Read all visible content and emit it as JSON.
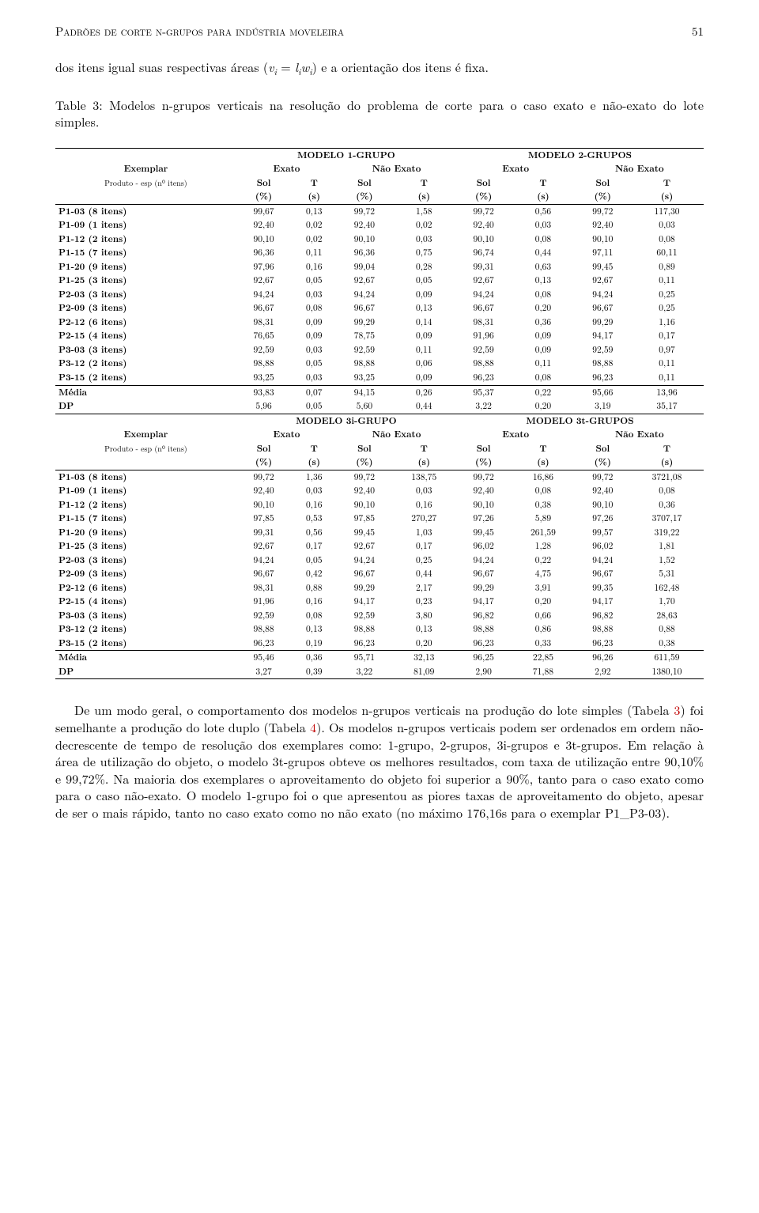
{
  "page": {
    "running_head": "Padrões de corte n-grupos para indústria moveleira",
    "page_number": "51"
  },
  "intro_para": "dos itens igual suas respectivas áreas (vᵢ = lᵢwᵢ) e a orientação dos itens é fixa.",
  "table_caption": "Table 3: Modelos n-grupos verticais na resolução do problema de corte para o caso exato e não-exato do lote simples.",
  "labels": {
    "exemplar": "Exemplar",
    "produto_esp": "Produto - esp (n⁰ itens)",
    "exato": "Exato",
    "nao_exato": "Não Exato",
    "sol": "Sol",
    "t": "T",
    "pct": "(%)",
    "sec": "(s)",
    "media": "Média",
    "dp": "DP"
  },
  "blocks": [
    {
      "left_title": "MODELO 1-GRUPO",
      "right_title": "MODELO 2-GRUPOS",
      "rows": [
        {
          "label": "P1-03 (8 itens)",
          "v": [
            "99,67",
            "0,13",
            "99,72",
            "1,58",
            "99,72",
            "0,56",
            "99,72",
            "117,30"
          ]
        },
        {
          "label": "P1-09 (1 itens)",
          "v": [
            "92,40",
            "0,02",
            "92,40",
            "0,02",
            "92,40",
            "0,03",
            "92,40",
            "0,03"
          ]
        },
        {
          "label": "P1-12 (2 itens)",
          "v": [
            "90,10",
            "0,02",
            "90,10",
            "0,03",
            "90,10",
            "0,08",
            "90,10",
            "0,08"
          ]
        },
        {
          "label": "P1-15 (7 itens)",
          "v": [
            "96,36",
            "0,11",
            "96,36",
            "0,75",
            "96,74",
            "0,44",
            "97,11",
            "60,11"
          ]
        },
        {
          "label": "P1-20 (9 itens)",
          "v": [
            "97,96",
            "0,16",
            "99,04",
            "0,28",
            "99,31",
            "0,63",
            "99,45",
            "0,89"
          ]
        },
        {
          "label": "P1-25 (3 itens)",
          "v": [
            "92,67",
            "0,05",
            "92,67",
            "0,05",
            "92,67",
            "0,13",
            "92,67",
            "0,11"
          ]
        },
        {
          "label": "P2-03 (3 itens)",
          "v": [
            "94,24",
            "0,03",
            "94,24",
            "0,09",
            "94,24",
            "0,08",
            "94,24",
            "0,25"
          ]
        },
        {
          "label": "P2-09 (3 itens)",
          "v": [
            "96,67",
            "0,08",
            "96,67",
            "0,13",
            "96,67",
            "0,20",
            "96,67",
            "0,25"
          ]
        },
        {
          "label": "P2-12 (6 itens)",
          "v": [
            "98,31",
            "0,09",
            "99,29",
            "0,14",
            "98,31",
            "0,36",
            "99,29",
            "1,16"
          ]
        },
        {
          "label": "P2-15 (4 itens)",
          "v": [
            "76,65",
            "0,09",
            "78,75",
            "0,09",
            "91,96",
            "0,09",
            "94,17",
            "0,17"
          ]
        },
        {
          "label": "P3-03 (3 itens)",
          "v": [
            "92,59",
            "0,03",
            "92,59",
            "0,11",
            "92,59",
            "0,09",
            "92,59",
            "0,97"
          ]
        },
        {
          "label": "P3-12 (2 itens)",
          "v": [
            "98,88",
            "0,05",
            "98,88",
            "0,06",
            "98,88",
            "0,11",
            "98,88",
            "0,11"
          ]
        },
        {
          "label": "P3-15 (2 itens)",
          "v": [
            "93,25",
            "0,03",
            "93,25",
            "0,09",
            "96,23",
            "0,08",
            "96,23",
            "0,11"
          ]
        }
      ],
      "media": [
        "93,83",
        "0,07",
        "94,15",
        "0,26",
        "95,37",
        "0,22",
        "95,66",
        "13,96"
      ],
      "dp": [
        "5,96",
        "0,05",
        "5,60",
        "0,44",
        "3,22",
        "0,20",
        "3,19",
        "35,17"
      ]
    },
    {
      "left_title": "MODELO 3i-GRUPO",
      "right_title": "MODELO 3t-GRUPOS",
      "rows": [
        {
          "label": "P1-03 (8 itens)",
          "v": [
            "99,72",
            "1,36",
            "99,72",
            "138,75",
            "99,72",
            "16,86",
            "99,72",
            "3721,08"
          ]
        },
        {
          "label": "P1-09 (1 itens)",
          "v": [
            "92,40",
            "0,03",
            "92,40",
            "0,03",
            "92,40",
            "0,08",
            "92,40",
            "0,08"
          ]
        },
        {
          "label": "P1-12 (2 itens)",
          "v": [
            "90,10",
            "0,16",
            "90,10",
            "0,16",
            "90,10",
            "0,38",
            "90,10",
            "0,36"
          ]
        },
        {
          "label": "P1-15 (7 itens)",
          "v": [
            "97,85",
            "0,53",
            "97,85",
            "270,27",
            "97,26",
            "5,89",
            "97,26",
            "3707,17"
          ]
        },
        {
          "label": "P1-20 (9 itens)",
          "v": [
            "99,31",
            "0,56",
            "99,45",
            "1,03",
            "99,45",
            "261,59",
            "99,57",
            "319,22"
          ]
        },
        {
          "label": "P1-25 (3 itens)",
          "v": [
            "92,67",
            "0,17",
            "92,67",
            "0,17",
            "96,02",
            "1,28",
            "96,02",
            "1,81"
          ]
        },
        {
          "label": "P2-03 (3 itens)",
          "v": [
            "94,24",
            "0,05",
            "94,24",
            "0,25",
            "94,24",
            "0,22",
            "94,24",
            "1,52"
          ]
        },
        {
          "label": "P2-09 (3 itens)",
          "v": [
            "96,67",
            "0,42",
            "96,67",
            "0,44",
            "96,67",
            "4,75",
            "96,67",
            "5,31"
          ]
        },
        {
          "label": "P2-12 (6 itens)",
          "v": [
            "98,31",
            "0,88",
            "99,29",
            "2,17",
            "99,29",
            "3,91",
            "99,35",
            "162,48"
          ]
        },
        {
          "label": "P2-15 (4 itens)",
          "v": [
            "91,96",
            "0,16",
            "94,17",
            "0,23",
            "94,17",
            "0,20",
            "94,17",
            "1,70"
          ]
        },
        {
          "label": "P3-03 (3 itens)",
          "v": [
            "92,59",
            "0,08",
            "92,59",
            "3,80",
            "96,82",
            "0,66",
            "96,82",
            "28,63"
          ]
        },
        {
          "label": "P3-12 (2 itens)",
          "v": [
            "98,88",
            "0,13",
            "98,88",
            "0,13",
            "98,88",
            "0,86",
            "98,88",
            "0,88"
          ]
        },
        {
          "label": "P3-15 (2 itens)",
          "v": [
            "96,23",
            "0,19",
            "96,23",
            "0,20",
            "96,23",
            "0,33",
            "96,23",
            "0,38"
          ]
        }
      ],
      "media": [
        "95,46",
        "0,36",
        "95,71",
        "32,13",
        "96,25",
        "22,85",
        "96,26",
        "611,59"
      ],
      "dp": [
        "3,27",
        "0,39",
        "3,22",
        "81,09",
        "2,90",
        "71,88",
        "2,92",
        "1380,10"
      ]
    }
  ],
  "body_para": {
    "pre_ref1": "De um modo geral, o comportamento dos modelos n-grupos verticais na produção do lote simples (Tabela ",
    "ref1": "3",
    "mid": ") foi semelhante a produção do lote duplo (Tabela ",
    "ref2": "4",
    "post": "). Os modelos n-grupos verticais podem ser ordenados em ordem não-decrescente de tempo de resolução dos exemplares como: 1-grupo, 2-grupos, 3i-grupos e 3t-grupos. Em relação à área de utilização do objeto, o modelo 3t-grupos obteve os melhores resultados, com taxa de utilização entre 90,10% e 99,72%. Na maioria dos exemplares o aproveitamento do objeto foi superior a 90%, tanto para o caso exato como para o caso não-exato. O modelo 1-grupo foi o que apresentou as piores taxas de aproveitamento do objeto, apesar de ser o mais rápido, tanto no caso exato como no não exato (no máximo 176,16s para o exemplar P1_P3-03)."
  },
  "style": {
    "text_color": "#000000",
    "link_color": "#c00000",
    "background": "#ffffff",
    "rule_color": "#000000",
    "body_font_size_pt": 12,
    "table_font_size_pt": 9
  }
}
